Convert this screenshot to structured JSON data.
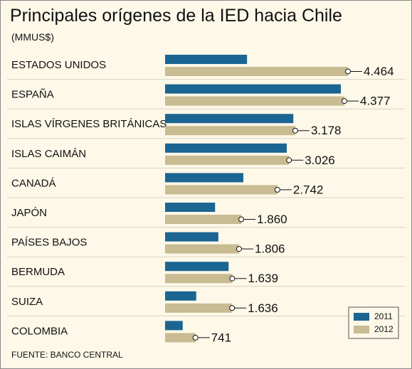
{
  "chart_data": {
    "type": "bar",
    "orientation": "horizontal",
    "title": "Principales orígenes de la IED hacia Chile",
    "subtitle": "(MMUS$)",
    "source": "FUENTE: BANCO CENTRAL",
    "categories": [
      "ESTADOS UNIDOS",
      "ESPAÑA",
      "ISLAS VÍRGENES BRITÁNICAS",
      "ISLAS CAIMÁN",
      "CANADÁ",
      "JAPÓN",
      "PAÍSES BAJOS",
      "BERMUDA",
      "SUIZA",
      "COLOMBIA"
    ],
    "series": [
      {
        "name": "2011",
        "color": "#1b6592",
        "values": [
          2000,
          4290,
          3130,
          2970,
          1910,
          1220,
          1300,
          1550,
          760,
          430
        ]
      },
      {
        "name": "2012",
        "color": "#c9bb92",
        "values": [
          4464,
          4377,
          3178,
          3026,
          2742,
          1860,
          1806,
          1639,
          1636,
          741
        ],
        "value_labels": [
          "4.464",
          "4.377",
          "3.178",
          "3.026",
          "2.742",
          "1.860",
          "1.806",
          "1.639",
          "1.636",
          "741"
        ]
      }
    ],
    "legend": "lower right"
  }
}
